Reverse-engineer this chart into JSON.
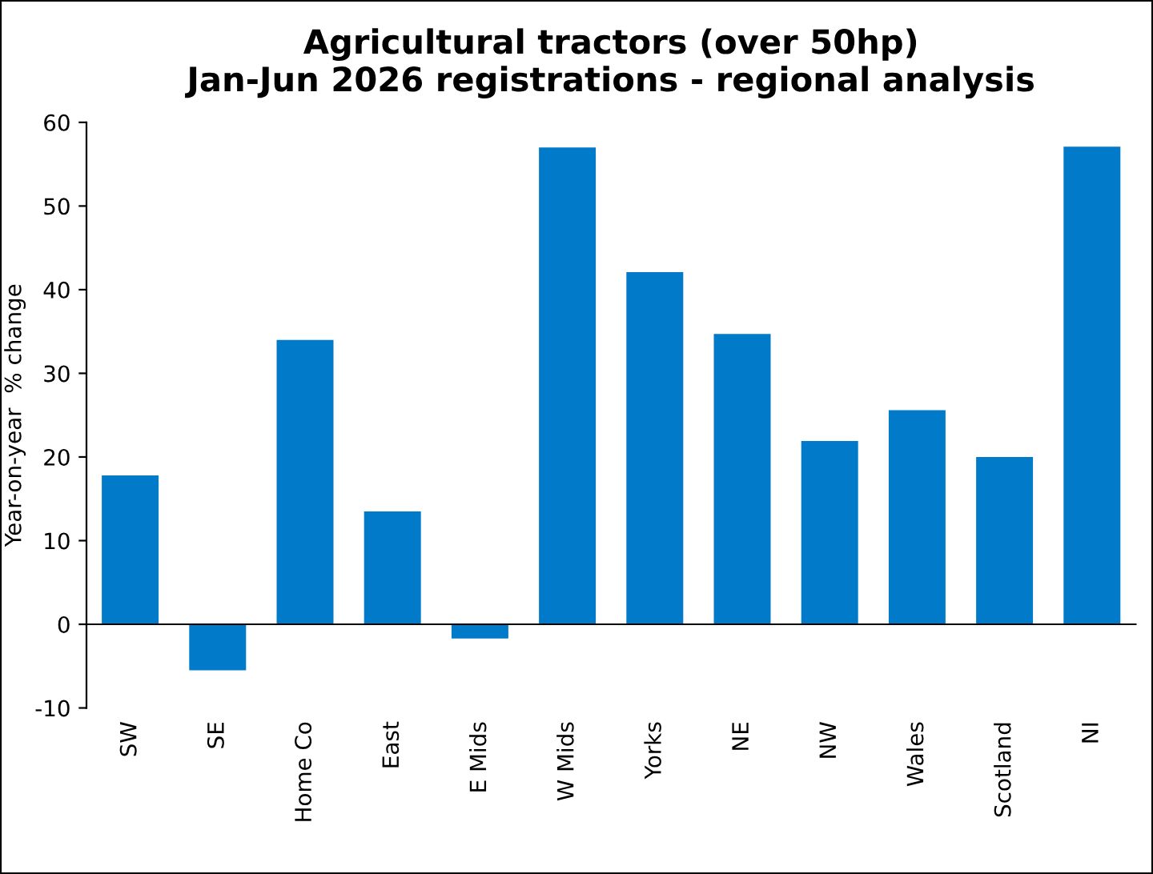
{
  "chart_data": {
    "type": "bar",
    "title": "Agricultural tractors (over 50hp)\nJan-Jun 2026 registrations - regional analysis",
    "ylabel": "Year-on-year  % change",
    "categories": [
      "SW",
      "SE",
      "Home Co",
      "East",
      "E Mids",
      "W Mids",
      "Yorks",
      "NE",
      "NW",
      "Wales",
      "Scotland",
      "NI"
    ],
    "values": [
      17.8,
      -5.5,
      34.0,
      13.5,
      -1.7,
      57.0,
      42.1,
      34.7,
      21.9,
      25.6,
      20.0,
      57.1
    ],
    "color": "#007ac9",
    "ylim": [
      -10,
      60
    ],
    "yticks": [
      -10,
      0,
      10,
      20,
      30,
      40,
      50,
      60
    ]
  }
}
